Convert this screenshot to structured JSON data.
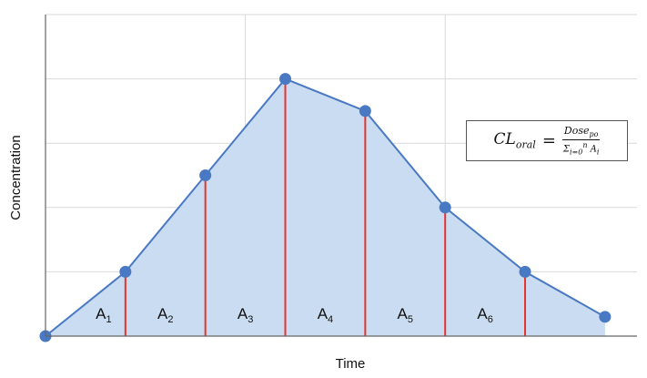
{
  "chart_data": {
    "type": "area",
    "xlabel": "Time",
    "ylabel": "Concentration",
    "x": [
      0,
      1,
      2,
      3,
      4,
      5,
      6,
      7
    ],
    "y": [
      0,
      1,
      2.5,
      4,
      3.5,
      2,
      1,
      0.3
    ],
    "xlim": [
      0,
      7.4
    ],
    "ylim": [
      0,
      5
    ],
    "grid": true,
    "area_labels": [
      {
        "base": "A",
        "sub": "1"
      },
      {
        "base": "A",
        "sub": "2"
      },
      {
        "base": "A",
        "sub": "3"
      },
      {
        "base": "A",
        "sub": "4"
      },
      {
        "base": "A",
        "sub": "5"
      },
      {
        "base": "A",
        "sub": "6"
      }
    ],
    "colors": {
      "line": "#4a79c4",
      "fill": "#c9dcf1",
      "point": "#4a79c4",
      "divider": "#e8332a",
      "grid": "#d9d9d9"
    }
  },
  "formula": {
    "lhs": "CL",
    "lhs_sub": "oral",
    "equals": "=",
    "numerator": "Dose",
    "numerator_sub": "po",
    "sum_symbol": "Σ",
    "sum_lower": "i=0",
    "sum_upper": "n",
    "sum_term": "A",
    "sum_term_sub": "i"
  }
}
